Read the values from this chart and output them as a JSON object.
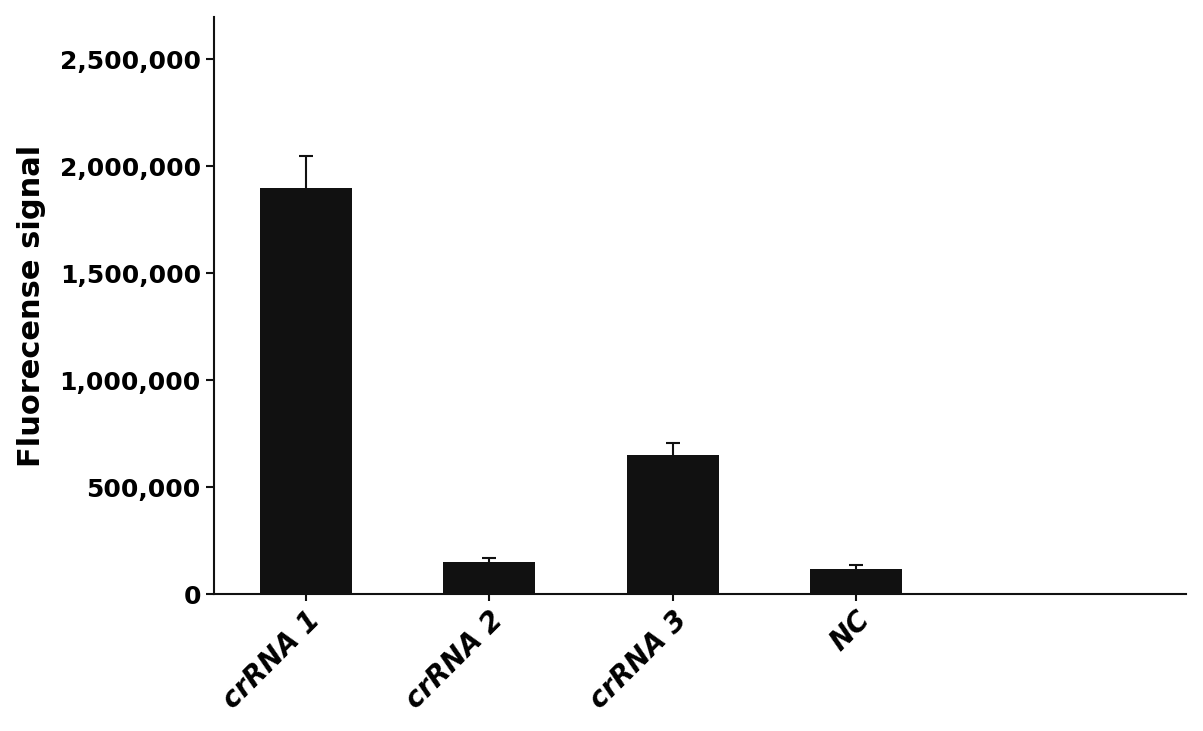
{
  "categories": [
    "crRNA 1",
    "crRNA 2",
    "crRNA 3",
    "NC"
  ],
  "values": [
    1900000,
    150000,
    650000,
    120000
  ],
  "errors": [
    150000,
    20000,
    55000,
    15000
  ],
  "bar_color": "#111111",
  "bar_width": 0.5,
  "ylabel": "Fluorecense signal",
  "ylim": [
    0,
    2700000
  ],
  "yticks": [
    0,
    500000,
    1000000,
    1500000,
    2000000,
    2500000
  ],
  "ytick_labels": [
    "0",
    "500,000",
    "1,000,000",
    "1,500,000",
    "2,000,000",
    "2,500,000"
  ],
  "background_color": "#ffffff",
  "ylabel_fontsize": 22,
  "tick_fontsize": 18,
  "xtick_fontsize": 20,
  "error_capsize": 5,
  "error_linewidth": 1.5,
  "error_color": "#111111",
  "xtick_rotation": 45,
  "bar_positions": [
    0,
    1,
    2,
    3
  ],
  "xlim": [
    -0.5,
    4.8
  ]
}
